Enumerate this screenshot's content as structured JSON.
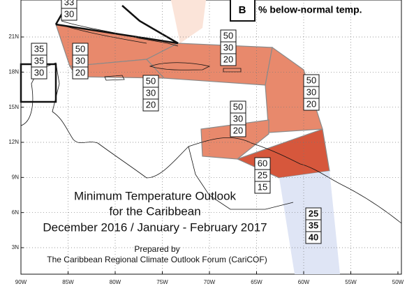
{
  "title": [
    "Minimum Temperature Outlook",
    "for the Caribbean",
    "December 2016 / January - February 2017"
  ],
  "credit": [
    "Prepared by",
    "The Caribbean Regional Climate Outlook Forum (CariCOF)"
  ],
  "legend": {
    "symbol": "B",
    "label": "% below-normal temp."
  },
  "x_axis": [
    "90W",
    "85W",
    "80W",
    "75W",
    "70W",
    "65W",
    "60W",
    "55W",
    "50W"
  ],
  "y_axis": [
    "21N",
    "18N",
    "15N",
    "12N",
    "9N",
    "6N",
    "3N"
  ],
  "regions": [
    {
      "probs": [
        33,
        30
      ]
    },
    {
      "probs": [
        35,
        35,
        30
      ]
    },
    {
      "probs": [
        50,
        30,
        20
      ]
    },
    {
      "probs": [
        50,
        30,
        20
      ]
    },
    {
      "probs": [
        50,
        30,
        20
      ]
    },
    {
      "probs": [
        50,
        30,
        20
      ]
    },
    {
      "probs": [
        50,
        30,
        20
      ]
    },
    {
      "probs": [
        60,
        25,
        15
      ]
    },
    {
      "probs": [
        25,
        35,
        40
      ]
    }
  ]
}
